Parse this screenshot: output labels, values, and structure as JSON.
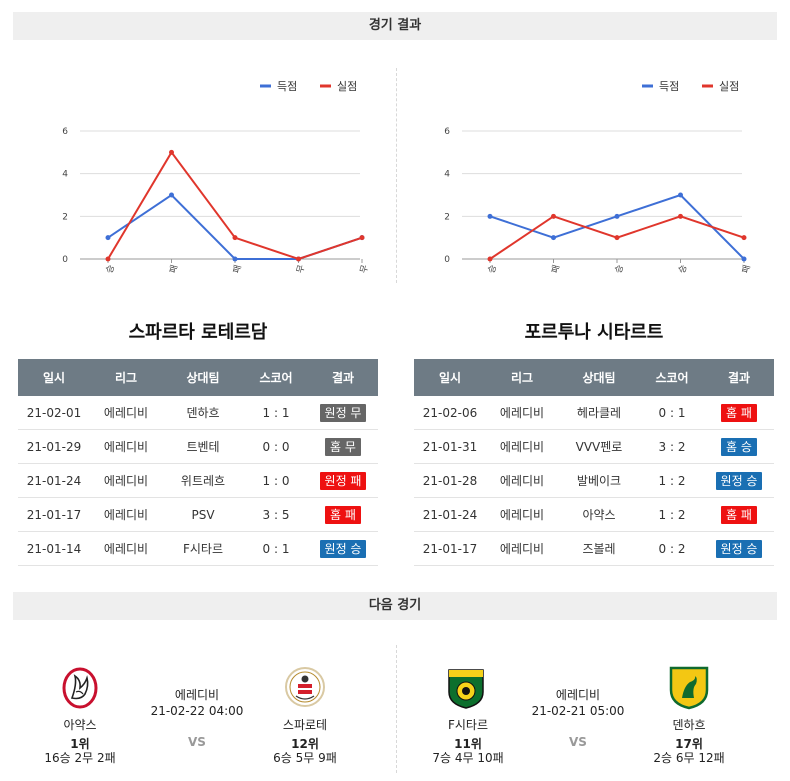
{
  "sections": {
    "results_title": "경기 결과",
    "next_title": "다음 경기"
  },
  "legend": {
    "scored": "득점",
    "conceded": "실점"
  },
  "colors": {
    "scored": "#3e6fd6",
    "conceded": "#e0362c",
    "draw": "#666666",
    "loss": "#ee1111",
    "win": "#1a6fb3"
  },
  "chart_data": [
    {
      "type": "line",
      "categories": [
        "승",
        "패",
        "패",
        "무",
        "무"
      ],
      "series": [
        {
          "name": "득점",
          "values": [
            1,
            3,
            0,
            0,
            1
          ]
        },
        {
          "name": "실점",
          "values": [
            0,
            5,
            1,
            0,
            1
          ]
        }
      ],
      "yticks": [
        "0",
        "2",
        "4",
        "6"
      ],
      "ylim": [
        0,
        6
      ],
      "grid": true,
      "legend_position": "top-right"
    },
    {
      "type": "line",
      "categories": [
        "승",
        "패",
        "승",
        "승",
        "패"
      ],
      "series": [
        {
          "name": "득점",
          "values": [
            2,
            1,
            2,
            3,
            0
          ]
        },
        {
          "name": "실점",
          "values": [
            0,
            2,
            1,
            2,
            1
          ]
        }
      ],
      "yticks": [
        "0",
        "2",
        "4",
        "6"
      ],
      "ylim": [
        0,
        6
      ],
      "grid": true,
      "legend_position": "top-right"
    }
  ],
  "headers": [
    "일시",
    "리그",
    "상대팀",
    "스코어",
    "결과"
  ],
  "left_team": {
    "name": "스파르타 로테르담",
    "rows": [
      {
        "date": "21-02-01",
        "league": "에레디비",
        "opponent": "덴하흐",
        "score": "1 : 1",
        "result": "원정 무",
        "kind": "draw"
      },
      {
        "date": "21-01-29",
        "league": "에레디비",
        "opponent": "트벤테",
        "score": "0 : 0",
        "result": "홈 무",
        "kind": "draw"
      },
      {
        "date": "21-01-24",
        "league": "에레디비",
        "opponent": "위트레흐",
        "score": "1 : 0",
        "result": "원정 패",
        "kind": "loss"
      },
      {
        "date": "21-01-17",
        "league": "에레디비",
        "opponent": "PSV",
        "score": "3 : 5",
        "result": "홈 패",
        "kind": "loss"
      },
      {
        "date": "21-01-14",
        "league": "에레디비",
        "opponent": "F시타르",
        "score": "0 : 1",
        "result": "원정 승",
        "kind": "win"
      }
    ]
  },
  "right_team": {
    "name": "포르투나 시타르트",
    "rows": [
      {
        "date": "21-02-06",
        "league": "에레디비",
        "opponent": "헤라클레",
        "score": "0 : 1",
        "result": "홈 패",
        "kind": "loss"
      },
      {
        "date": "21-01-31",
        "league": "에레디비",
        "opponent": "VVV펜로",
        "score": "3 : 2",
        "result": "홈 승",
        "kind": "win"
      },
      {
        "date": "21-01-28",
        "league": "에레디비",
        "opponent": "발베이크",
        "score": "1 : 2",
        "result": "원정 승",
        "kind": "win"
      },
      {
        "date": "21-01-24",
        "league": "에레디비",
        "opponent": "아약스",
        "score": "1 : 2",
        "result": "홈 패",
        "kind": "loss"
      },
      {
        "date": "21-01-17",
        "league": "에레디비",
        "opponent": "즈볼레",
        "score": "0 : 2",
        "result": "원정 승",
        "kind": "win"
      }
    ]
  },
  "next_matches": [
    {
      "league": "에레디비",
      "datetime": "21-02-22 04:00",
      "vs": "VS",
      "home": {
        "name": "아약스",
        "rank": "1위",
        "record": "16승 2무 2패"
      },
      "away": {
        "name": "스파로테",
        "rank": "12위",
        "record": "6승 5무 9패"
      }
    },
    {
      "league": "에레디비",
      "datetime": "21-02-21 05:00",
      "vs": "VS",
      "home": {
        "name": "F시타르",
        "rank": "11위",
        "record": "7승 4무 10패"
      },
      "away": {
        "name": "덴하흐",
        "rank": "17위",
        "record": "2승 6무 12패"
      }
    }
  ]
}
